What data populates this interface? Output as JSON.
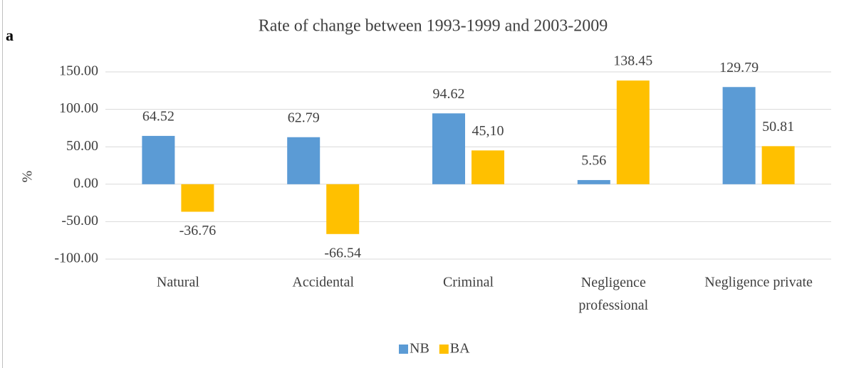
{
  "panel_label": "a",
  "chart_data": {
    "type": "bar",
    "title": "Rate of change between 1993-1999 and 2003-2009",
    "y_label": "%",
    "categories": [
      "Natural",
      "Accidental",
      "Criminal",
      "Negligence professional",
      "Negligence private"
    ],
    "series": [
      {
        "name": "NB",
        "color": "#5b9bd5",
        "values": [
          64.52,
          62.79,
          94.62,
          5.56,
          129.79
        ],
        "value_labels": [
          "64.52",
          "62.79",
          "94.62",
          "5.56",
          "129.79"
        ]
      },
      {
        "name": "BA",
        "color": "#ffc000",
        "values": [
          -36.76,
          -66.54,
          45.1,
          138.45,
          50.81
        ],
        "value_labels": [
          "-36.76",
          "-66.54",
          "45,10",
          "138.45",
          "50.81"
        ]
      }
    ],
    "ylim": [
      -100,
      150
    ],
    "yticks": [
      {
        "value": -100,
        "label": "-100.00"
      },
      {
        "value": -50,
        "label": "-50.00"
      },
      {
        "value": 0,
        "label": "0.00"
      },
      {
        "value": 50,
        "label": "50.00"
      },
      {
        "value": 100,
        "label": "100.00"
      },
      {
        "value": 150,
        "label": "150.00"
      }
    ],
    "grid": true,
    "legend": "bottom"
  }
}
